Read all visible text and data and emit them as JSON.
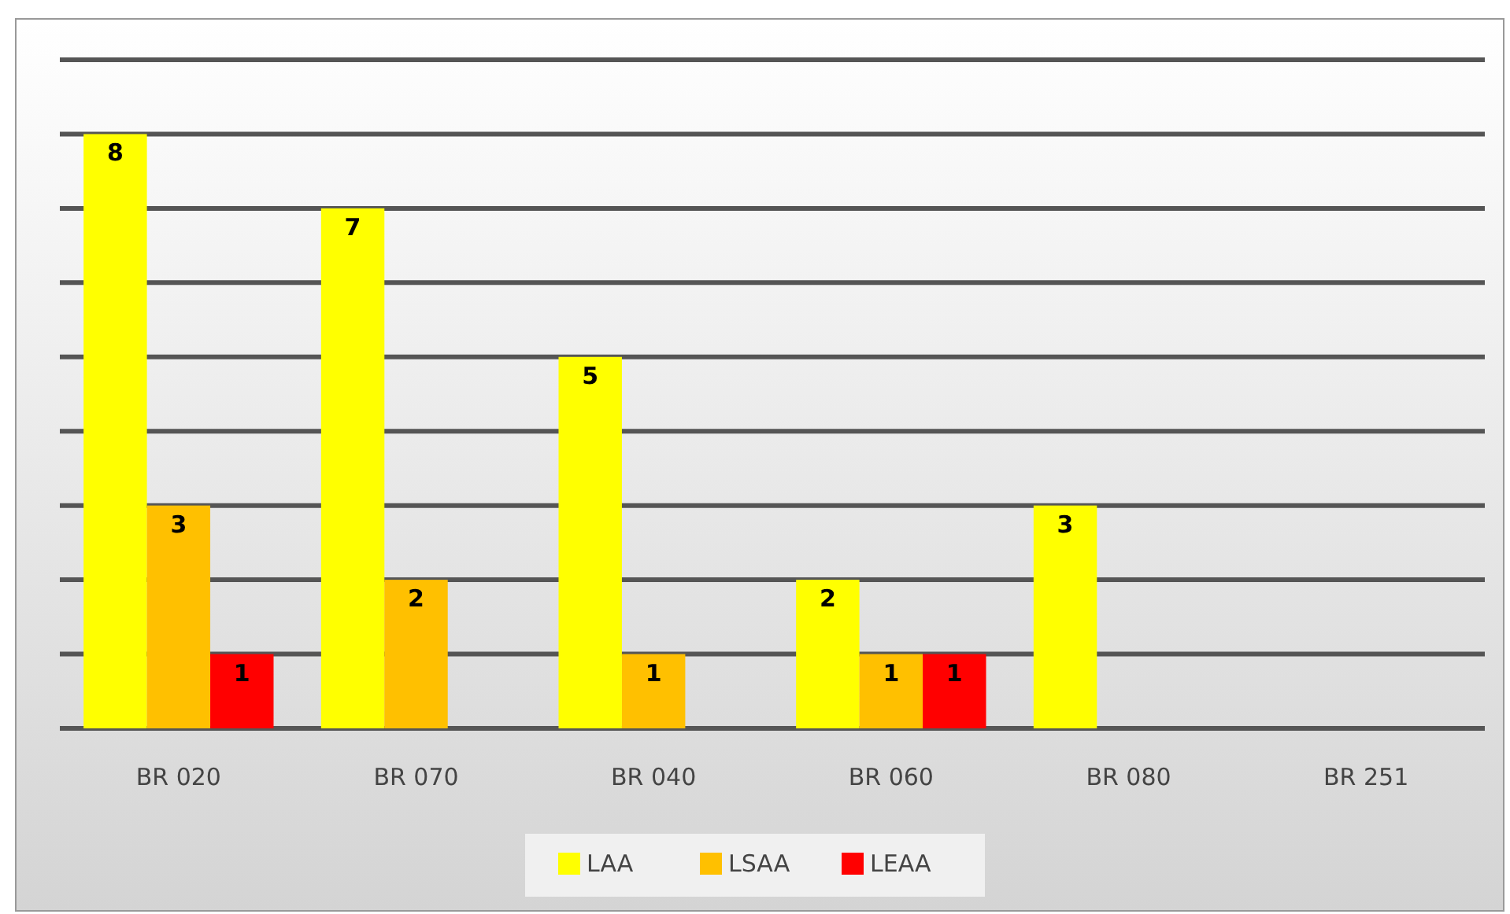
{
  "chart_data": {
    "type": "bar",
    "categories": [
      "BR 020",
      "BR 070",
      "BR 040",
      "BR 060",
      "BR 080",
      "BR 251"
    ],
    "series": [
      {
        "name": "LAA",
        "color": "#ffff00",
        "values": [
          8,
          7,
          5,
          2,
          3,
          null
        ]
      },
      {
        "name": "LSAA",
        "color": "#ffc000",
        "values": [
          3,
          2,
          1,
          1,
          null,
          null
        ]
      },
      {
        "name": "LEAA",
        "color": "#ff0000",
        "values": [
          1,
          null,
          null,
          1,
          null,
          null
        ]
      }
    ],
    "ylim": [
      0,
      9
    ],
    "yticks": [
      {
        "value": 0,
        "label": null
      },
      {
        "value": 1,
        "label": null
      },
      {
        "value": 2,
        "label": null
      },
      {
        "value": 3,
        "label": null
      },
      {
        "value": 4,
        "label": null
      },
      {
        "value": 5,
        "label": null
      },
      {
        "value": 6,
        "label": null
      },
      {
        "value": 7,
        "label": null
      },
      {
        "value": 8,
        "label": null
      },
      {
        "value": 9,
        "label": null
      }
    ],
    "tick_labels": "x",
    "grid": "y",
    "legend": "bottom",
    "data_labels": true
  }
}
